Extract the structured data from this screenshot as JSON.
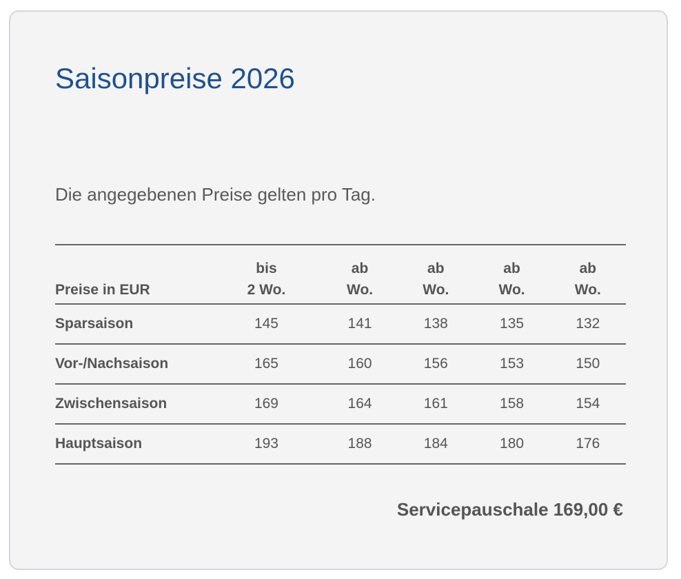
{
  "title": "Saisonpreise 2026",
  "intro": "Die angegebenen Preise gelten pro Tag.",
  "table": {
    "corner_label": "Preise in EUR",
    "columns": [
      {
        "line1": "bis",
        "line2": "2 Wo."
      },
      {
        "line1": "ab",
        "line2": "Wo."
      },
      {
        "line1": "ab",
        "line2": "Wo."
      },
      {
        "line1": "ab",
        "line2": "Wo."
      },
      {
        "line1": "ab",
        "line2": "Wo."
      }
    ],
    "rows": [
      {
        "label": "Sparsaison",
        "values": [
          "145",
          "141",
          "138",
          "135",
          "132"
        ]
      },
      {
        "label": "Vor-/Nachsaison",
        "values": [
          "165",
          "160",
          "156",
          "153",
          "150"
        ]
      },
      {
        "label": "Zwischensaison",
        "values": [
          "169",
          "164",
          "161",
          "158",
          "154"
        ]
      },
      {
        "label": "Hauptsaison",
        "values": [
          "193",
          "188",
          "184",
          "180",
          "176"
        ]
      }
    ]
  },
  "footer": "Servicepauschale 169,00 €",
  "colors": {
    "title": "#1e5190",
    "text": "#555555",
    "card_bg": "#f4f4f4"
  }
}
